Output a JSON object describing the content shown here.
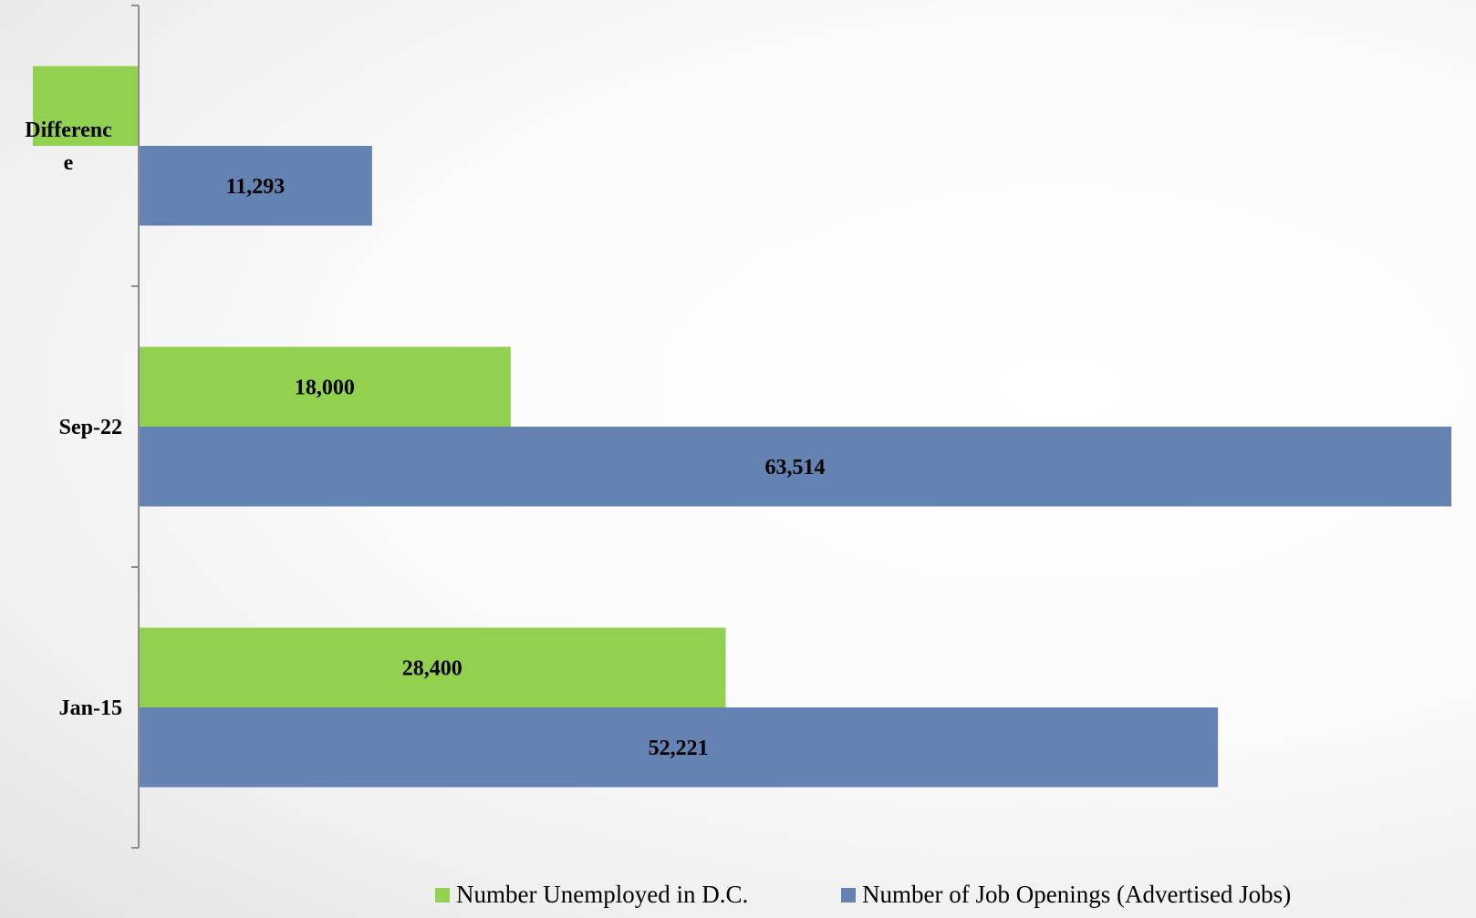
{
  "chart_data": {
    "type": "bar",
    "orientation": "horizontal",
    "categories": [
      "Jan-15",
      "Sep-22",
      "Difference"
    ],
    "series": [
      {
        "name": "Number Unemployed in D.C.",
        "color": "#92d050",
        "values": [
          28400,
          18000,
          null
        ]
      },
      {
        "name": "Number of Job Openings (Advertised Jobs)",
        "color": "#6482b2",
        "values": [
          52221,
          63514,
          11293
        ]
      }
    ],
    "xlim": [
      0,
      65000
    ],
    "title": "",
    "xlabel": "",
    "ylabel": "",
    "grid": false,
    "legend_position": "bottom"
  }
}
